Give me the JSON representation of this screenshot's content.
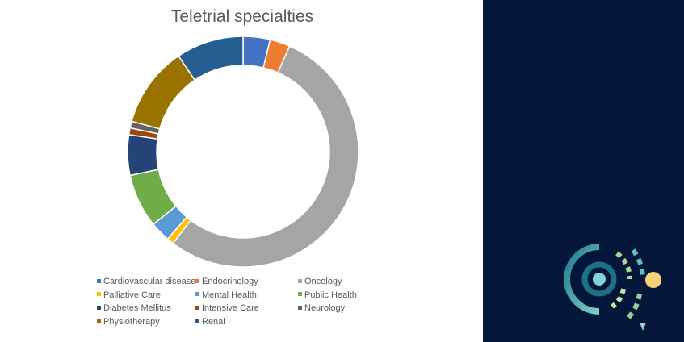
{
  "colors": {
    "panel_background": "#04163a"
  },
  "logo": {
    "icon": "australia-map-signal-logo-icon"
  },
  "chart_data": {
    "type": "donut",
    "title": "Teletrial specialties",
    "legend_position": "bottom",
    "series": [
      {
        "slices": [
          {
            "label": "Cardiovascular disease",
            "value": 4,
            "color": "#4472c4"
          },
          {
            "label": "Endocrinology",
            "value": 3,
            "color": "#ed7d31"
          },
          {
            "label": "Oncology",
            "value": 57,
            "color": "#a5a5a5"
          },
          {
            "label": "Palliative Care",
            "value": 1,
            "color": "#ffc000"
          },
          {
            "label": "Mental Health",
            "value": 3,
            "color": "#5b9bd5"
          },
          {
            "label": "Public Health",
            "value": 8,
            "color": "#70ad47"
          },
          {
            "label": "Diabetes Mellitus",
            "value": 6,
            "color": "#264478"
          },
          {
            "label": "Intensive Care",
            "value": 1,
            "color": "#9e480e"
          },
          {
            "label": "Neurology",
            "value": 1,
            "color": "#636363"
          },
          {
            "label": "Physiotherapy",
            "value": 12,
            "color": "#997300"
          },
          {
            "label": "Renal",
            "value": 10,
            "color": "#255e91"
          }
        ]
      }
    ]
  }
}
